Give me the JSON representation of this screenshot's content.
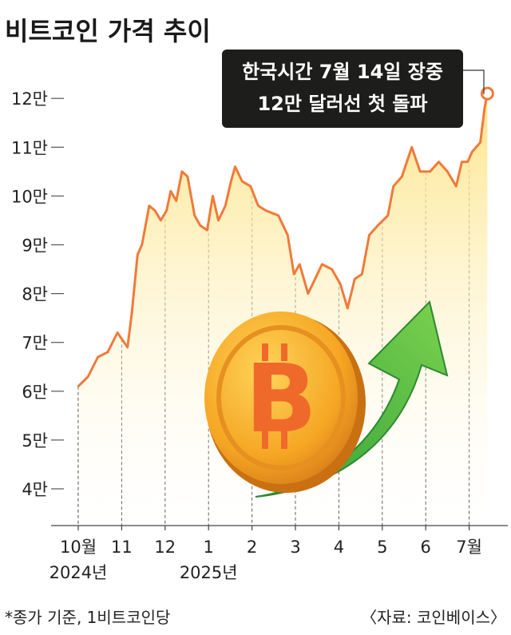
{
  "chart_data": {
    "type": "line",
    "title": "비트코인 가격 추이",
    "ylabel": "",
    "xlabel": "",
    "y_ticks": [
      {
        "value": 4,
        "label": "4만"
      },
      {
        "value": 5,
        "label": "5만"
      },
      {
        "value": 6,
        "label": "6만"
      },
      {
        "value": 7,
        "label": "7만"
      },
      {
        "value": 8,
        "label": "8만"
      },
      {
        "value": 9,
        "label": "9만"
      },
      {
        "value": 10,
        "label": "10만"
      },
      {
        "value": 11,
        "label": "11만"
      },
      {
        "value": 12,
        "label": "12만"
      }
    ],
    "ylim": [
      3.3,
      12.6
    ],
    "x_ticks": [
      {
        "m": 0,
        "label": "10월"
      },
      {
        "m": 1,
        "label": "11"
      },
      {
        "m": 2,
        "label": "12"
      },
      {
        "m": 3,
        "label": "1"
      },
      {
        "m": 4,
        "label": "2"
      },
      {
        "m": 5,
        "label": "3"
      },
      {
        "m": 6,
        "label": "4"
      },
      {
        "m": 7,
        "label": "5"
      },
      {
        "m": 8,
        "label": "6"
      },
      {
        "m": 9,
        "label": "7월"
      }
    ],
    "year_labels": [
      {
        "m": 0,
        "label": "2024년"
      },
      {
        "m": 3,
        "label": "2025년"
      }
    ],
    "series": [
      {
        "x": [
          "2024-10-01",
          "2024-10-08",
          "2024-10-15",
          "2024-10-22",
          "2024-10-29",
          "2024-11-05",
          "2024-11-08",
          "2024-11-12",
          "2024-11-15",
          "2024-11-20",
          "2024-11-24",
          "2024-11-28",
          "2024-12-02",
          "2024-12-05",
          "2024-12-09",
          "2024-12-13",
          "2024-12-17",
          "2024-12-22",
          "2024-12-26",
          "2024-12-31",
          "2025-01-04",
          "2025-01-08",
          "2025-01-13",
          "2025-01-17",
          "2025-01-20",
          "2025-01-25",
          "2025-01-31",
          "2025-02-05",
          "2025-02-10",
          "2025-02-18",
          "2025-02-24",
          "2025-02-28",
          "2025-03-04",
          "2025-03-10",
          "2025-03-15",
          "2025-03-20",
          "2025-03-27",
          "2025-04-02",
          "2025-04-07",
          "2025-04-12",
          "2025-04-17",
          "2025-04-22",
          "2025-04-28",
          "2025-05-05",
          "2025-05-09",
          "2025-05-15",
          "2025-05-22",
          "2025-05-28",
          "2025-06-04",
          "2025-06-10",
          "2025-06-16",
          "2025-06-22",
          "2025-06-26",
          "2025-06-30",
          "2025-07-03",
          "2025-07-09",
          "2025-07-12",
          "2025-07-14"
        ],
        "values": [
          6.1,
          6.3,
          6.7,
          6.8,
          7.2,
          6.9,
          7.6,
          8.8,
          9.0,
          9.8,
          9.7,
          9.5,
          9.7,
          10.1,
          9.9,
          10.5,
          10.4,
          9.6,
          9.4,
          9.3,
          10.0,
          9.5,
          9.8,
          10.3,
          10.6,
          10.3,
          10.2,
          9.8,
          9.7,
          9.6,
          9.2,
          8.4,
          8.6,
          8.0,
          8.3,
          8.6,
          8.5,
          8.2,
          7.7,
          8.3,
          8.4,
          9.2,
          9.4,
          9.6,
          10.2,
          10.4,
          11.0,
          10.5,
          10.5,
          10.7,
          10.5,
          10.2,
          10.7,
          10.7,
          10.9,
          11.1,
          11.8,
          12.1
        ]
      }
    ],
    "colors": {
      "line": "#f07a3a",
      "fill_top": "#fde58a",
      "fill_bottom": "#ffffff",
      "callout_bg": "#1d1d1b"
    },
    "grid": "vertical dashed from each month tick to the line"
  },
  "annotation": {
    "line1": "한국시간 7월 14일 장중",
    "line2": "12만 달러선 첫 돌파"
  },
  "footnote": "*종가 기준, 1비트코인당",
  "source": "〈자료: 코인베이스〉",
  "illustration": {
    "coin_icon": "bitcoin-coin-icon",
    "arrow_icon": "green-up-arrow-icon",
    "symbol": "B",
    "coin_color": "#f5a623",
    "arrow_color": "#3fae3c"
  }
}
